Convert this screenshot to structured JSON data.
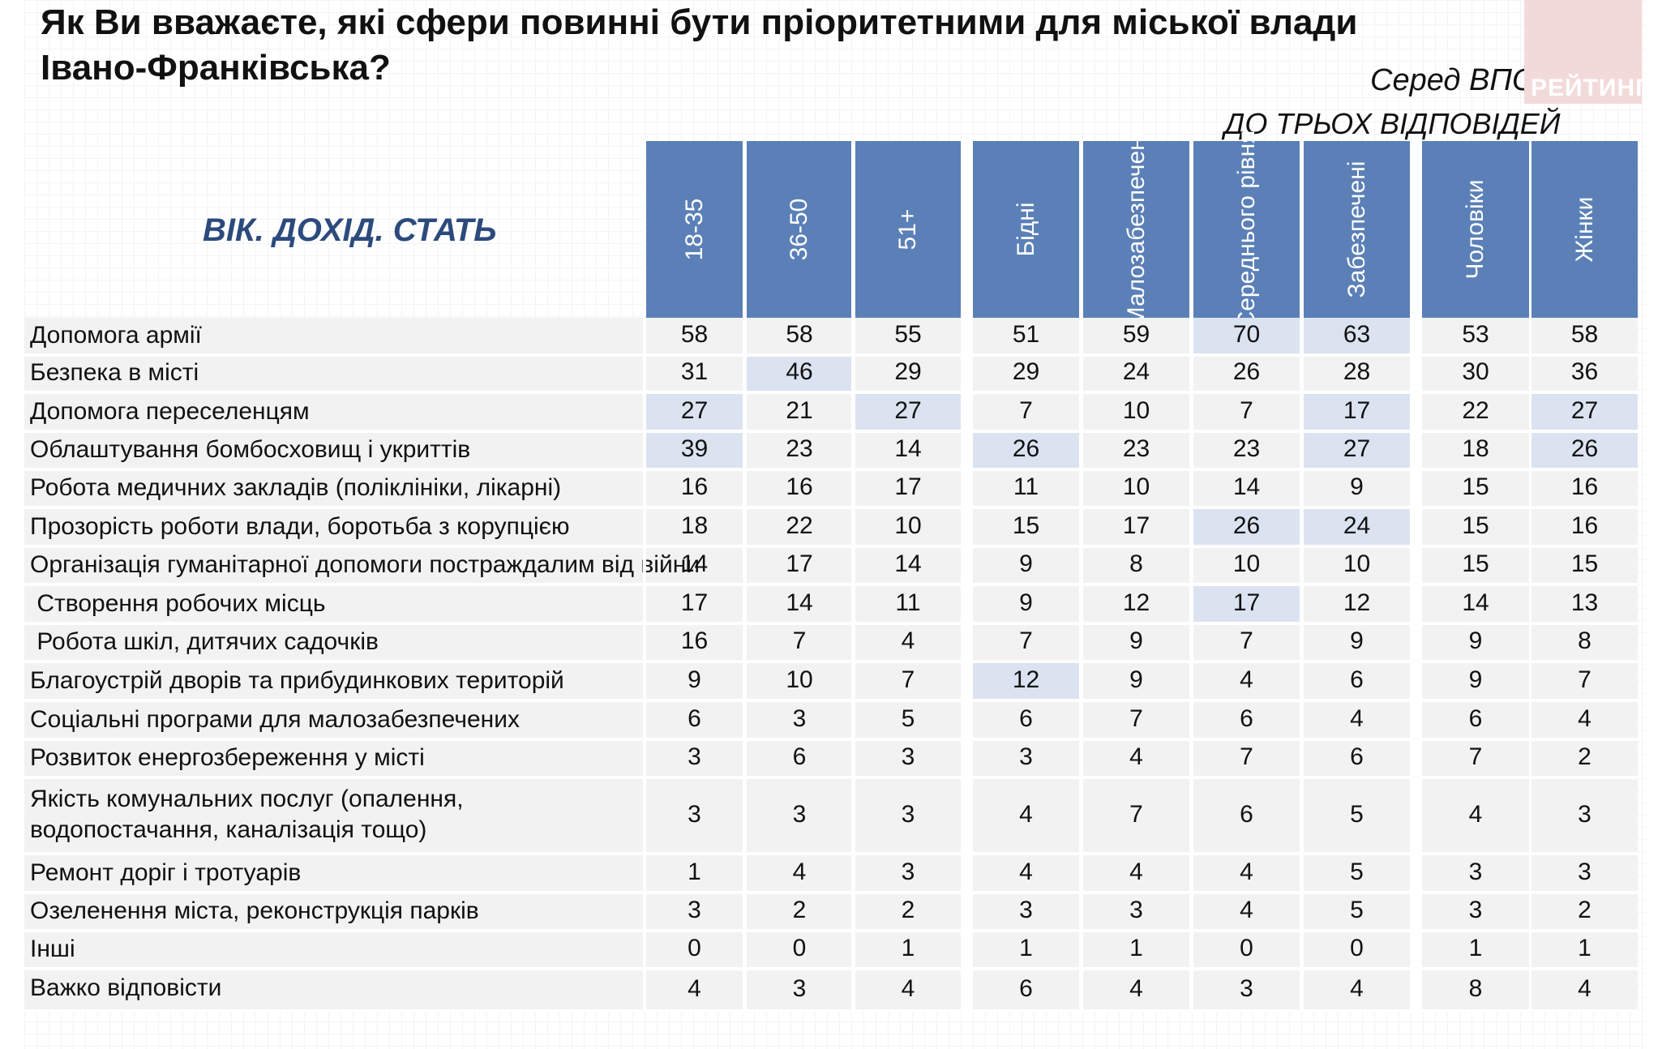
{
  "title": "Як Ви вважаєте, які сфери повинні бути пріоритетними для міської влади Івано-Франківська?",
  "subset": "Серед ВПО",
  "note": "ДО ТРЬОХ ВІДПОВІДЕЙ",
  "logo_text": "РЕЙТИНГ",
  "section_label": "ВІК. ДОХІД. СТАТЬ",
  "colors": {
    "header": "#5b80b7",
    "highlight": "#dbe3f1",
    "row": "#f2f2f2",
    "section_label": "#2c4a7c"
  },
  "chart_data": {
    "type": "table",
    "columns": [
      "18-35",
      "36-50",
      "51+",
      "Бідні",
      "Малозабезпечені",
      "Середнього рівня",
      "Забезпечені",
      "Чоловіки",
      "Жінки"
    ],
    "rows": [
      {
        "label": "Допомога армії",
        "values": [
          58,
          58,
          55,
          51,
          59,
          70,
          63,
          53,
          58
        ],
        "highlight": [
          5,
          6
        ]
      },
      {
        "label": "Безпека в місті",
        "values": [
          31,
          46,
          29,
          29,
          24,
          26,
          28,
          30,
          36
        ],
        "highlight": [
          1
        ]
      },
      {
        "label": "Допомога переселенцям",
        "values": [
          27,
          21,
          27,
          7,
          10,
          7,
          17,
          22,
          27
        ],
        "highlight": [
          0,
          2,
          6,
          8
        ]
      },
      {
        "label": "Облаштування бомбосховищ і укриттів",
        "values": [
          39,
          23,
          14,
          26,
          23,
          23,
          27,
          18,
          26
        ],
        "highlight": [
          0,
          3,
          6,
          8
        ]
      },
      {
        "label": "Робота медичних закладів (поліклініки, лікарні)",
        "values": [
          16,
          16,
          17,
          11,
          10,
          14,
          9,
          15,
          16
        ],
        "highlight": []
      },
      {
        "label": "Прозорість роботи влади, боротьба з корупцією",
        "values": [
          18,
          22,
          10,
          15,
          17,
          26,
          24,
          15,
          16
        ],
        "highlight": [
          5,
          6
        ]
      },
      {
        "label": "Організація гуманітарної допомоги постраждалим від війни",
        "values": [
          14,
          17,
          14,
          9,
          8,
          10,
          10,
          15,
          15
        ],
        "highlight": []
      },
      {
        "label": " Створення робочих місць",
        "values": [
          17,
          14,
          11,
          9,
          12,
          17,
          12,
          14,
          13
        ],
        "highlight": [
          5
        ]
      },
      {
        "label": " Робота шкіл, дитячих садочків",
        "values": [
          16,
          7,
          4,
          7,
          9,
          7,
          9,
          9,
          8
        ],
        "highlight": []
      },
      {
        "label": "Благоустрій дворів та прибудинкових територій",
        "values": [
          9,
          10,
          7,
          12,
          9,
          4,
          6,
          9,
          7
        ],
        "highlight": [
          3
        ]
      },
      {
        "label": "Соціальні програми для малозабезпечених",
        "values": [
          6,
          3,
          5,
          6,
          7,
          6,
          4,
          6,
          4
        ],
        "highlight": []
      },
      {
        "label": "Розвиток енергозбереження у місті",
        "values": [
          3,
          6,
          3,
          3,
          4,
          7,
          6,
          7,
          2
        ],
        "highlight": []
      },
      {
        "label": "Якість комунальних послуг (опалення, водопостачання, каналізація тощо)",
        "values": [
          3,
          3,
          3,
          4,
          7,
          6,
          5,
          4,
          3
        ],
        "highlight": []
      },
      {
        "label": "Ремонт доріг і тротуарів",
        "values": [
          1,
          4,
          3,
          4,
          4,
          4,
          5,
          3,
          3
        ],
        "highlight": []
      },
      {
        "label": "Озеленення міста, реконструкція парків",
        "values": [
          3,
          2,
          2,
          3,
          3,
          4,
          5,
          3,
          2
        ],
        "highlight": []
      },
      {
        "label": "Інші",
        "values": [
          0,
          0,
          1,
          1,
          1,
          0,
          0,
          1,
          1
        ],
        "highlight": []
      },
      {
        "label": "Важко відповісти",
        "values": [
          4,
          3,
          4,
          6,
          4,
          3,
          4,
          8,
          4
        ],
        "highlight": []
      }
    ]
  }
}
